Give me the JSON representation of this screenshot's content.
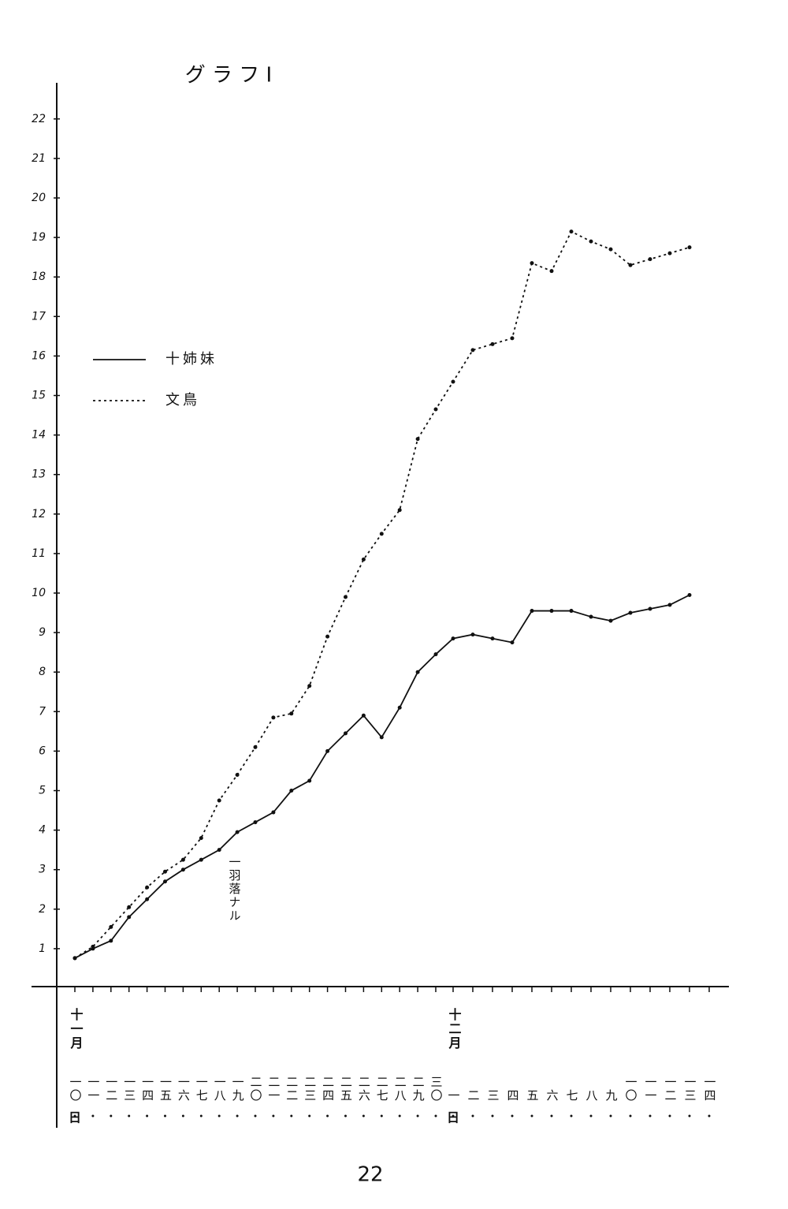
{
  "chart_data": {
    "type": "line",
    "title": "グ ラ フ I",
    "month_labels": [
      "十一月",
      "十二月"
    ],
    "day_suffix": "日",
    "categories": [
      "一〇",
      "一一",
      "一二",
      "一三",
      "一四",
      "一五",
      "一六",
      "一七",
      "一八",
      "一九",
      "二〇",
      "二一",
      "二二",
      "二三",
      "二四",
      "二五",
      "二六",
      "二七",
      "二八",
      "二九",
      "三〇",
      "一",
      "二",
      "三",
      "四",
      "五",
      "六",
      "七",
      "八",
      "九",
      "一〇",
      "一一",
      "一二",
      "一三",
      "一四"
    ],
    "series": [
      {
        "name": "十姉妹",
        "color": "#111111",
        "line_style": "solid",
        "values": [
          0.76,
          1.0,
          1.2,
          1.8,
          2.25,
          2.7,
          3.0,
          3.25,
          3.5,
          3.95,
          4.2,
          4.45,
          5.0,
          5.25,
          6.0,
          6.45,
          6.9,
          6.35,
          7.1,
          8.0,
          8.45,
          8.85,
          8.95,
          8.85,
          8.75,
          9.55,
          9.55,
          9.55,
          9.4,
          9.3,
          9.5,
          9.6,
          9.7,
          9.95,
          null
        ]
      },
      {
        "name": "文鳥",
        "color": "#111111",
        "line_style": "dotted",
        "values": [
          0.76,
          1.05,
          1.55,
          2.05,
          2.55,
          2.95,
          3.25,
          3.8,
          4.75,
          5.4,
          6.1,
          6.85,
          6.95,
          7.65,
          8.9,
          9.9,
          10.85,
          11.5,
          12.1,
          13.9,
          14.65,
          15.35,
          16.15,
          16.3,
          16.45,
          18.35,
          18.15,
          19.15,
          18.9,
          18.7,
          18.3,
          18.45,
          18.6,
          18.75,
          null
        ]
      }
    ],
    "annotation": "一羽落ナル",
    "ylim": [
      0,
      22.9
    ],
    "yticks": [
      1,
      2,
      3,
      4,
      5,
      6,
      7,
      8,
      9,
      10,
      11,
      12,
      13,
      14,
      15,
      16,
      17,
      18,
      19,
      20,
      21,
      22
    ],
    "grid": false
  },
  "page_number": "22"
}
